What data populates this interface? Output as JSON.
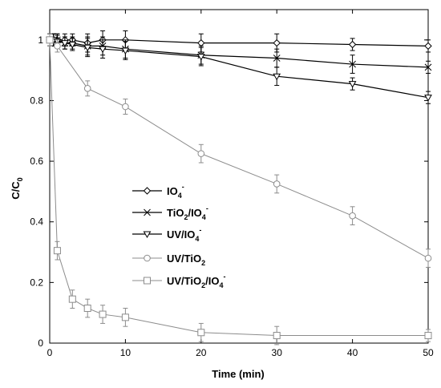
{
  "chart_data": {
    "type": "line",
    "xlabel": "Time (min)",
    "ylabel": "C/C",
    "ylabel_sub": "0",
    "xlim": [
      0,
      50
    ],
    "ylim": [
      0,
      1.1
    ],
    "xticks": [
      "0",
      "10",
      "20",
      "30",
      "40",
      "50"
    ],
    "yticks": [
      "0",
      "0.2",
      "0.4",
      "0.6",
      "0.8",
      "1"
    ],
    "grid": false,
    "legend_position": "center-left",
    "series": [
      {
        "legend": {
          "base": "IO",
          "sub": "4",
          "sup": "-"
        },
        "marker": "diamond",
        "color": "#000000",
        "line_width": 1.2,
        "x": [
          0,
          0.5,
          1,
          2,
          3,
          5,
          7,
          10,
          20,
          30,
          40,
          50
        ],
        "y": [
          1.0,
          1.0,
          1.0,
          1.0,
          1.0,
          0.99,
          1.0,
          1.0,
          0.99,
          0.99,
          0.985,
          0.98
        ],
        "err": [
          0.02,
          0.02,
          0.02,
          0.02,
          0.02,
          0.03,
          0.03,
          0.03,
          0.03,
          0.03,
          0.02,
          0.02
        ]
      },
      {
        "legend": {
          "base": "TiO",
          "sub": "2",
          "mid": "/IO",
          "sub2": "4",
          "sup": "-"
        },
        "marker": "x",
        "color": "#000000",
        "line_width": 1.2,
        "x": [
          0,
          0.5,
          1,
          2,
          3,
          5,
          7,
          10,
          20,
          30,
          40,
          50
        ],
        "y": [
          1.0,
          1.0,
          1.0,
          0.99,
          0.99,
          0.98,
          0.98,
          0.97,
          0.95,
          0.94,
          0.92,
          0.91
        ],
        "err": [
          0.02,
          0.02,
          0.02,
          0.02,
          0.02,
          0.03,
          0.03,
          0.03,
          0.03,
          0.03,
          0.03,
          0.02
        ]
      },
      {
        "legend": {
          "base": "UV/IO",
          "sub": "4",
          "sup": "-"
        },
        "marker": "triangle-down",
        "color": "#000000",
        "line_width": 1.2,
        "x": [
          0,
          0.5,
          1,
          2,
          3,
          5,
          7,
          10,
          20,
          30,
          40,
          50
        ],
        "y": [
          1.0,
          1.0,
          0.995,
          0.99,
          0.985,
          0.975,
          0.97,
          0.965,
          0.945,
          0.88,
          0.855,
          0.81
        ],
        "err": [
          0.02,
          0.02,
          0.02,
          0.02,
          0.02,
          0.03,
          0.03,
          0.03,
          0.03,
          0.03,
          0.02,
          0.02
        ]
      },
      {
        "legend": {
          "base": "UV/TiO",
          "sub": "2"
        },
        "marker": "circle",
        "color": "#8c8c8c",
        "line_width": 1.0,
        "x": [
          0,
          1,
          5,
          10,
          20,
          30,
          40,
          50
        ],
        "y": [
          1.0,
          0.98,
          0.84,
          0.78,
          0.625,
          0.525,
          0.42,
          0.28
        ],
        "err": [
          0.02,
          0.02,
          0.025,
          0.025,
          0.03,
          0.03,
          0.03,
          0.03
        ]
      },
      {
        "legend": {
          "base": "UV/TiO",
          "sub": "2",
          "mid": "/IO",
          "sub2": "4",
          "sup": "-"
        },
        "marker": "square",
        "color": "#8c8c8c",
        "line_width": 1.0,
        "x": [
          0,
          1,
          3,
          5,
          7,
          10,
          20,
          30,
          50
        ],
        "y": [
          1.0,
          0.305,
          0.145,
          0.115,
          0.095,
          0.085,
          0.035,
          0.025,
          0.025
        ],
        "err": [
          0.02,
          0.03,
          0.03,
          0.03,
          0.03,
          0.03,
          0.03,
          0.03,
          0.02
        ]
      }
    ]
  }
}
